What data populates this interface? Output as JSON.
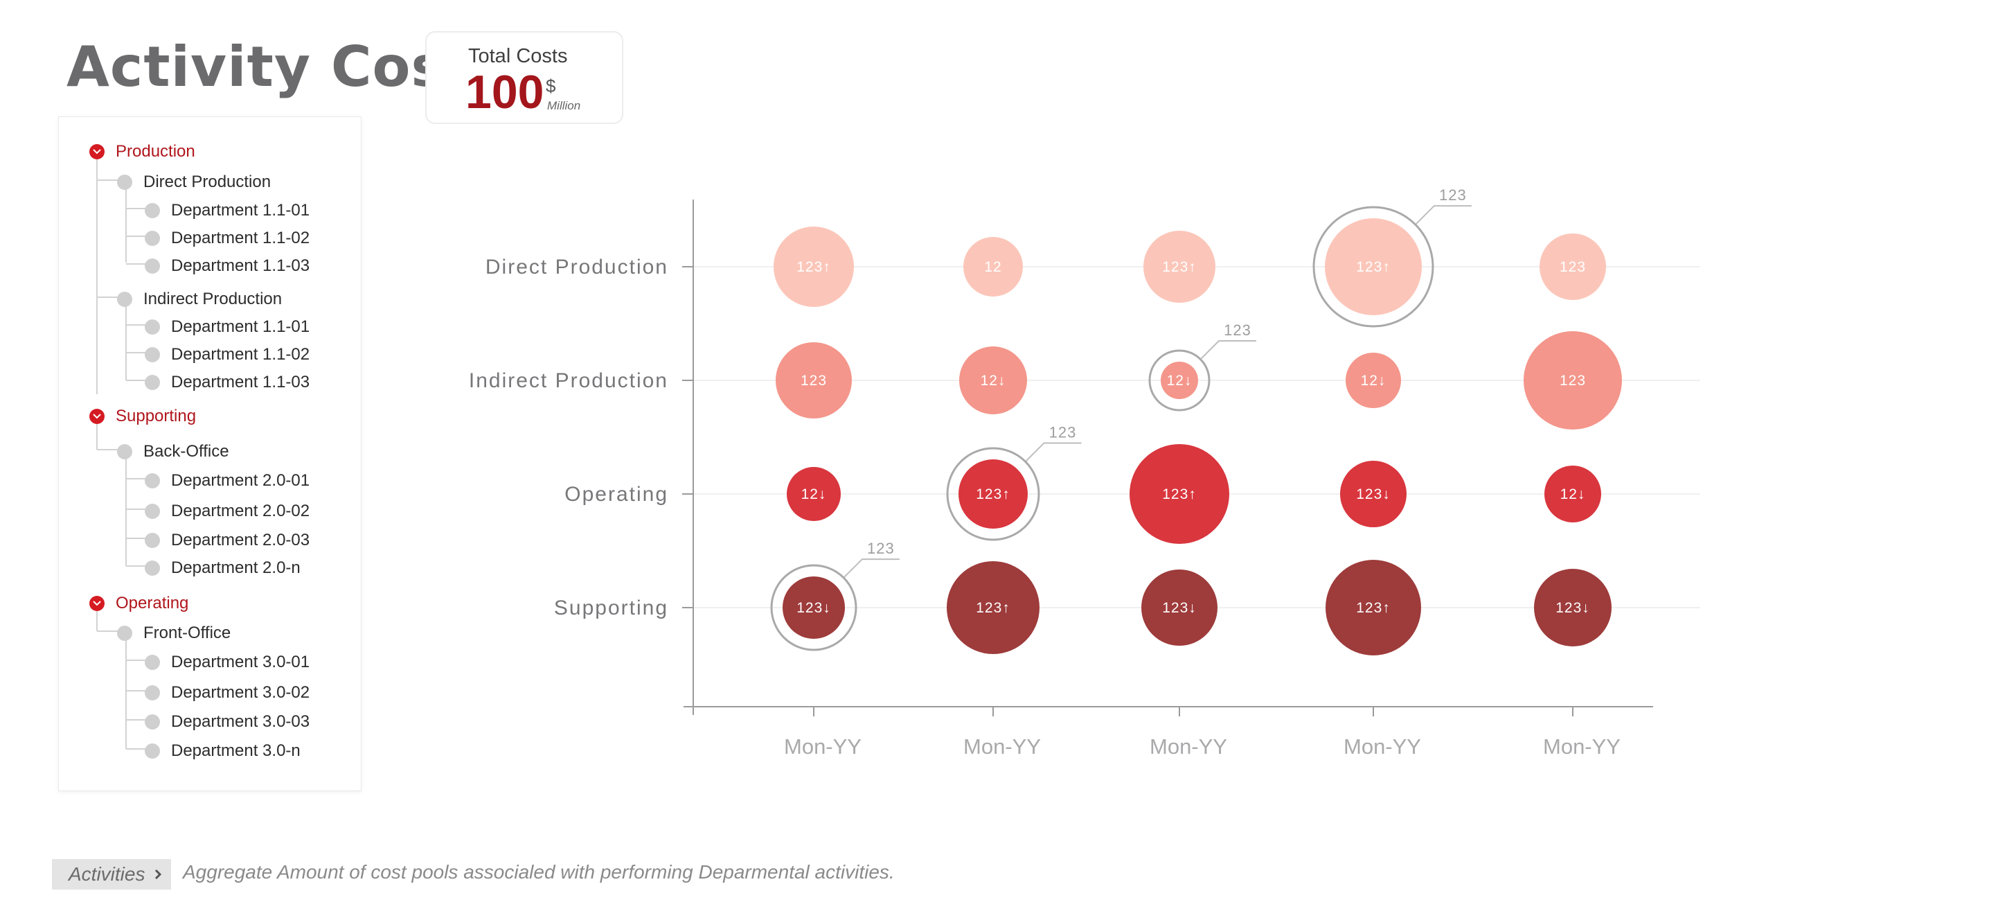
{
  "page": {
    "title": "Activity Cost",
    "total": {
      "label": "Total Costs",
      "value": "100",
      "currency": "$",
      "unit": "Million"
    }
  },
  "tree": {
    "groups": [
      {
        "label": "Production",
        "children": [
          {
            "label": "Direct Production",
            "children": [
              "Department 1.1-01",
              "Department 1.1-02",
              "Department 1.1-03"
            ]
          },
          {
            "label": "Indirect Production",
            "children": [
              "Department 1.1-01",
              "Department 1.1-02",
              "Department 1.1-03"
            ]
          }
        ]
      },
      {
        "label": "Supporting",
        "children": [
          {
            "label": "Back-Office",
            "children": [
              "Department 2.0-01",
              "Department 2.0-02",
              "Department 2.0-03",
              "Department 2.0-n"
            ]
          }
        ]
      },
      {
        "label": "Operating",
        "children": [
          {
            "label": "Front-Office",
            "children": [
              "Department 3.0-01",
              "Department 3.0-02",
              "Department 3.0-03",
              "Department 3.0-n"
            ]
          }
        ]
      }
    ]
  },
  "footer": {
    "tag": "Activities",
    "description": "Aggregate Amount of cost pools associaled with performing Deparmental activities."
  },
  "colors": {
    "direct": "#fbc6b9",
    "indirect": "#f4968b",
    "operating": "#d9363e",
    "supporting": "#9e3b3b",
    "accent": "#b0161c"
  },
  "chart_data": {
    "type": "scatter",
    "categories": [
      "Mon-YY",
      "Mon-YY",
      "Mon-YY",
      "Mon-YY",
      "Mon-YY"
    ],
    "rows": [
      "Direct Production",
      "Indirect Production",
      "Operating",
      "Supporting"
    ],
    "bubbles": [
      {
        "row": 0,
        "col": 0,
        "size": 58,
        "label": "123",
        "trend": "up"
      },
      {
        "row": 0,
        "col": 1,
        "size": 43,
        "label": "12",
        "trend": ""
      },
      {
        "row": 0,
        "col": 2,
        "size": 52,
        "label": "123",
        "trend": "up"
      },
      {
        "row": 0,
        "col": 3,
        "size": 70,
        "label": "123",
        "trend": "up",
        "highlight": true,
        "callout": "123"
      },
      {
        "row": 0,
        "col": 4,
        "size": 48,
        "label": "123",
        "trend": ""
      },
      {
        "row": 1,
        "col": 0,
        "size": 55,
        "label": "123",
        "trend": ""
      },
      {
        "row": 1,
        "col": 1,
        "size": 49,
        "label": "12",
        "trend": "down"
      },
      {
        "row": 1,
        "col": 2,
        "size": 27,
        "label": "12",
        "trend": "down",
        "highlight": true,
        "callout": "123"
      },
      {
        "row": 1,
        "col": 3,
        "size": 40,
        "label": "12",
        "trend": "down"
      },
      {
        "row": 1,
        "col": 4,
        "size": 71,
        "label": "123",
        "trend": ""
      },
      {
        "row": 2,
        "col": 0,
        "size": 39,
        "label": "12",
        "trend": "down"
      },
      {
        "row": 2,
        "col": 1,
        "size": 50,
        "label": "123",
        "trend": "up",
        "highlight": true,
        "callout": "123"
      },
      {
        "row": 2,
        "col": 2,
        "size": 72,
        "label": "123",
        "trend": "up"
      },
      {
        "row": 2,
        "col": 3,
        "size": 48,
        "label": "123",
        "trend": "down"
      },
      {
        "row": 2,
        "col": 4,
        "size": 41,
        "label": "12",
        "trend": "down"
      },
      {
        "row": 3,
        "col": 0,
        "size": 45,
        "label": "123",
        "trend": "down",
        "highlight": true,
        "callout": "123"
      },
      {
        "row": 3,
        "col": 1,
        "size": 67,
        "label": "123",
        "trend": "up"
      },
      {
        "row": 3,
        "col": 2,
        "size": 55,
        "label": "123",
        "trend": "down"
      },
      {
        "row": 3,
        "col": 3,
        "size": 69,
        "label": "123",
        "trend": "up"
      },
      {
        "row": 3,
        "col": 4,
        "size": 56,
        "label": "123",
        "trend": "down"
      }
    ]
  }
}
